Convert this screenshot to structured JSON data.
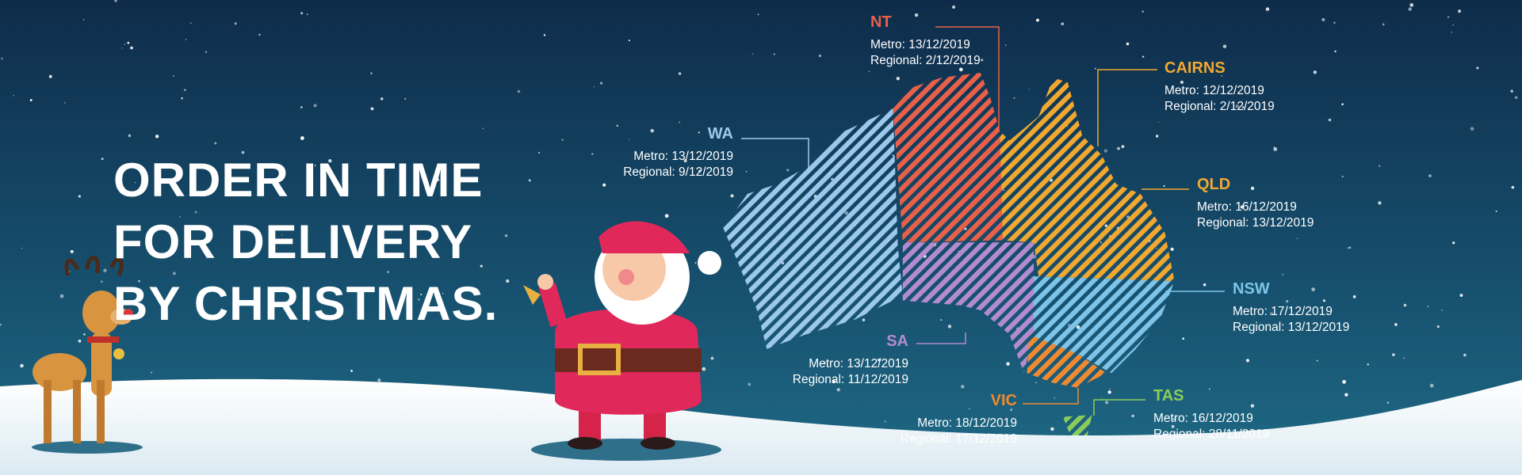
{
  "headline": [
    "ORDER IN TIME",
    "FOR DELIVERY",
    "BY CHRISTMAS."
  ],
  "regions": [
    {
      "name": "NT",
      "color": "#e8604a",
      "metro": "Metro: 13/12/2019",
      "regional": "Regional: 2/12/2019"
    },
    {
      "name": "CAIRNS",
      "color": "#f0a830",
      "metro": "Metro: 12/12/2019",
      "regional": "Regional: 2/12/2019"
    },
    {
      "name": "WA",
      "color": "#9cc8ec",
      "metro": "Metro: 13/12/2019",
      "regional": "Regional: 9/12/2019"
    },
    {
      "name": "QLD",
      "color": "#f0a830",
      "metro": "Metro: 16/12/2019",
      "regional": "Regional: 13/12/2019"
    },
    {
      "name": "NSW",
      "color": "#7ec4e8",
      "metro": "Metro: 17/12/2019",
      "regional": "Regional: 13/12/2019"
    },
    {
      "name": "SA",
      "color": "#b48ad0",
      "metro": "Metro: 13/12/2019",
      "regional": "Regional: 11/12/2019"
    },
    {
      "name": "VIC",
      "color": "#f08a30",
      "metro": "Metro: 18/12/2019",
      "regional": "Regional: 17/12/2019"
    },
    {
      "name": "TAS",
      "color": "#8ccc5a",
      "metro": "Metro: 16/12/2019",
      "regional": "Regional: 28/11/2019"
    }
  ]
}
